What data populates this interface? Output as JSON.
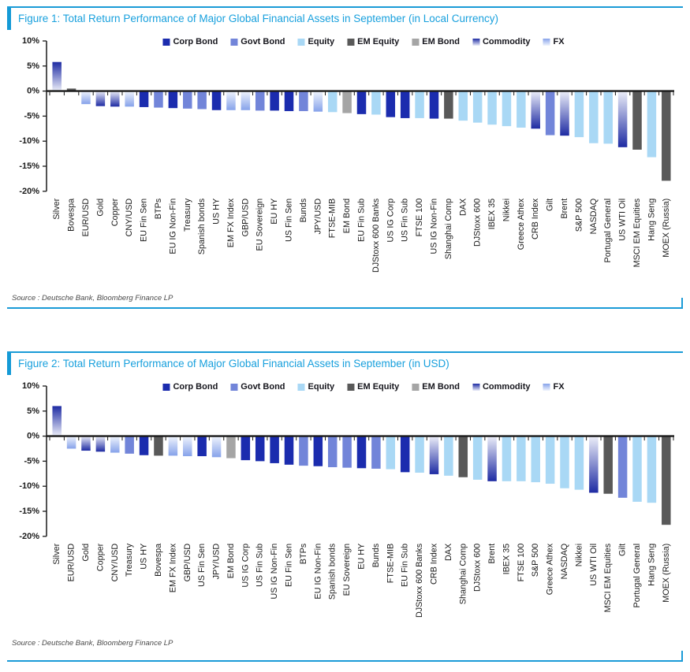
{
  "page": {
    "background": "#ffffff"
  },
  "figures": [
    {
      "title": "Figure 1: Total Return Performance of Major Global Financial Assets in September (in Local Currency)",
      "source": "Source : Deutsche Bank, Bloomberg Finance LP"
    },
    {
      "title": "Figure 2: Total Return Performance of Major Global Financial Assets in September (in USD)",
      "source": "Source : Deutsche Bank, Bloomberg Finance LP"
    }
  ],
  "legend": {
    "items": [
      "Corp Bond",
      "Govt Bond",
      "Equity",
      "EM Equity",
      "EM Bond",
      "Commodity",
      "FX"
    ]
  },
  "palette": {
    "Corp Bond": {
      "type": "solid",
      "color": "#1b2cae"
    },
    "Govt Bond": {
      "type": "solid",
      "color": "#7285d9"
    },
    "Equity": {
      "type": "solid",
      "color": "#a9d8f5"
    },
    "EM Equity": {
      "type": "solid",
      "color": "#595959"
    },
    "EM Bond": {
      "type": "solid",
      "color": "#a5a5a5"
    },
    "Commodity": {
      "type": "gradient",
      "color": "#1e2ba3",
      "light": "#edeff9"
    },
    "FX": {
      "type": "gradient",
      "color": "#86a2ea",
      "light": "#f1f5fd"
    }
  },
  "frame_color": "#1a9bd7",
  "chart_data": [
    {
      "type": "bar",
      "title": "Total Return Performance of Major Global Financial Assets in September (in Local Currency)",
      "unit": "percent",
      "ylim": [
        -20,
        10
      ],
      "yticks": [
        10,
        5,
        0,
        -5,
        -10,
        -15,
        -20
      ],
      "grid": false,
      "legend_position": "top-center",
      "xlabel": "",
      "ylabel": "",
      "categories": [
        "Silver",
        "Bovespa",
        "EUR/USD",
        "Gold",
        "Copper",
        "CNY/USD",
        "EU Fin Sen",
        "BTPs",
        "EU IG Non-Fin",
        "Treasury",
        "Spanish bonds",
        "US HY",
        "EM FX Index",
        "GBP/USD",
        "EU Sovereign",
        "EU HY",
        "US Fin Sen",
        "Bunds",
        "JPY/USD",
        "FTSE-MIB",
        "EM Bond",
        "EU Fin Sub",
        "DJStoxx 600 Banks",
        "US IG Corp",
        "US Fin Sub",
        "FTSE 100",
        "US IG Non-Fin",
        "Shanghai Comp",
        "DAX",
        "DJStoxx 600",
        "IBEX 35",
        "Nikkei",
        "Greece Athex",
        "CRB Index",
        "Gilt",
        "Brent",
        "S&P 500",
        "NASDAQ",
        "Portugal General",
        "US WTI Oil",
        "MSCI EM Equities",
        "Hang Seng",
        "MOEX (Russia)"
      ],
      "series_category": [
        "Commodity",
        "EM Equity",
        "FX",
        "Commodity",
        "Commodity",
        "FX",
        "Corp Bond",
        "Govt Bond",
        "Corp Bond",
        "Govt Bond",
        "Govt Bond",
        "Corp Bond",
        "FX",
        "FX",
        "Govt Bond",
        "Corp Bond",
        "Corp Bond",
        "Govt Bond",
        "FX",
        "Equity",
        "EM Bond",
        "Corp Bond",
        "Equity",
        "Corp Bond",
        "Corp Bond",
        "Equity",
        "Corp Bond",
        "EM Equity",
        "Equity",
        "Equity",
        "Equity",
        "Equity",
        "Equity",
        "Commodity",
        "Govt Bond",
        "Commodity",
        "Equity",
        "Equity",
        "Equity",
        "Commodity",
        "EM Equity",
        "Equity",
        "EM Equity"
      ],
      "values": [
        5.8,
        0.5,
        -2.6,
        -3.0,
        -3.1,
        -3.1,
        -3.2,
        -3.3,
        -3.4,
        -3.5,
        -3.6,
        -3.8,
        -3.8,
        -3.8,
        -3.9,
        -3.9,
        -4.0,
        -4.0,
        -4.1,
        -4.2,
        -4.4,
        -4.6,
        -4.7,
        -5.2,
        -5.4,
        -5.4,
        -5.5,
        -5.5,
        -5.9,
        -6.3,
        -6.7,
        -7.0,
        -7.3,
        -7.5,
        -8.8,
        -8.9,
        -9.2,
        -10.4,
        -10.5,
        -11.2,
        -11.7,
        -13.2,
        -17.9
      ]
    },
    {
      "type": "bar",
      "title": "Total Return Performance of Major Global Financial Assets in September (in USD)",
      "unit": "percent",
      "ylim": [
        -20,
        10
      ],
      "yticks": [
        10,
        5,
        0,
        -5,
        -10,
        -15,
        -20
      ],
      "grid": false,
      "legend_position": "top-center",
      "xlabel": "",
      "ylabel": "",
      "categories": [
        "Silver",
        "EUR/USD",
        "Gold",
        "Copper",
        "CNY/USD",
        "Treasury",
        "US HY",
        "Bovespa",
        "EM FX Index",
        "GBP/USD",
        "US Fin Sen",
        "JPY/USD",
        "EM Bond",
        "US IG Corp",
        "US Fin Sub",
        "US IG Non-Fin",
        "EU Fin Sen",
        "BTPs",
        "EU IG Non-Fin",
        "Spanish bonds",
        "EU Sovereign",
        "EU HY",
        "Bunds",
        "FTSE-MIB",
        "EU Fin Sub",
        "DJStoxx 600 Banks",
        "CRB Index",
        "DAX",
        "Shanghai Comp",
        "DJStoxx 600",
        "Brent",
        "IBEX 35",
        "FTSE 100",
        "S&P 500",
        "Greece Athex",
        "NASDAQ",
        "Nikkei",
        "US WTI Oil",
        "MSCI EM Equities",
        "Gilt",
        "Portugal General",
        "Hang Seng",
        "MOEX (Russia)"
      ],
      "series_category": [
        "Commodity",
        "FX",
        "Commodity",
        "Commodity",
        "FX",
        "Govt Bond",
        "Corp Bond",
        "EM Equity",
        "FX",
        "FX",
        "Corp Bond",
        "FX",
        "EM Bond",
        "Corp Bond",
        "Corp Bond",
        "Corp Bond",
        "Corp Bond",
        "Govt Bond",
        "Corp Bond",
        "Govt Bond",
        "Govt Bond",
        "Corp Bond",
        "Govt Bond",
        "Equity",
        "Corp Bond",
        "Equity",
        "Commodity",
        "Equity",
        "EM Equity",
        "Equity",
        "Commodity",
        "Equity",
        "Equity",
        "Equity",
        "Equity",
        "Equity",
        "Equity",
        "Commodity",
        "EM Equity",
        "Govt Bond",
        "Equity",
        "Equity",
        "EM Equity"
      ],
      "values": [
        6.0,
        -2.5,
        -2.9,
        -3.1,
        -3.3,
        -3.5,
        -3.8,
        -3.9,
        -3.9,
        -4.0,
        -4.0,
        -4.2,
        -4.4,
        -4.8,
        -5.0,
        -5.4,
        -5.7,
        -5.9,
        -6.0,
        -6.2,
        -6.3,
        -6.4,
        -6.5,
        -6.6,
        -7.2,
        -7.3,
        -7.6,
        -7.9,
        -8.2,
        -8.7,
        -9.0,
        -9.0,
        -9.0,
        -9.2,
        -9.5,
        -10.4,
        -10.7,
        -11.3,
        -11.5,
        -12.3,
        -13.1,
        -13.3,
        -17.7
      ]
    }
  ]
}
